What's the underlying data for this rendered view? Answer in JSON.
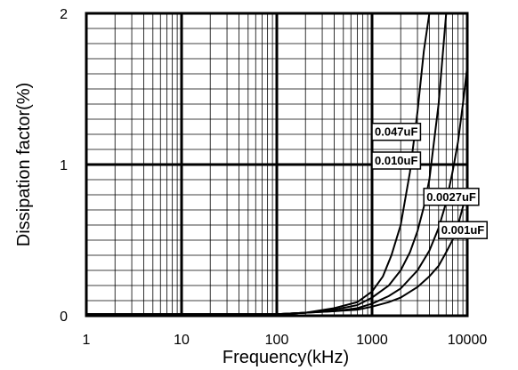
{
  "chart_data": {
    "type": "line",
    "xlabel": "Frequency(kHz)",
    "ylabel": "Dissipation factor(%)",
    "x_scale": "log",
    "xlim": [
      1,
      10000
    ],
    "ylim": [
      0,
      2
    ],
    "x_ticks": [
      1,
      10,
      100,
      1000,
      10000
    ],
    "x_tick_labels": [
      "1",
      "10",
      "100",
      "1000",
      "10000"
    ],
    "y_ticks": [
      0,
      1,
      2
    ],
    "y_tick_labels": [
      "0",
      "1",
      "2"
    ],
    "grid": true,
    "series": [
      {
        "name": "0.047uF",
        "label_at": [
          1000,
          1.19
        ],
        "x": [
          1,
          2,
          5,
          10,
          20,
          50,
          100,
          200,
          400,
          700,
          1000,
          1300,
          1600,
          2000,
          2500,
          3000,
          3500,
          4000
        ],
        "y": [
          0.01,
          0.01,
          0.01,
          0.01,
          0.01,
          0.01,
          0.01,
          0.02,
          0.05,
          0.09,
          0.16,
          0.26,
          0.4,
          0.6,
          0.95,
          1.35,
          1.75,
          2.0
        ]
      },
      {
        "name": "0.010uF",
        "label_at": [
          1000,
          1.0
        ],
        "x": [
          1,
          2,
          5,
          10,
          20,
          50,
          100,
          200,
          400,
          700,
          1000,
          1500,
          2000,
          2500,
          3000,
          3500,
          4000,
          5000,
          6000
        ],
        "y": [
          0.01,
          0.01,
          0.01,
          0.01,
          0.01,
          0.01,
          0.01,
          0.02,
          0.04,
          0.07,
          0.12,
          0.2,
          0.3,
          0.42,
          0.56,
          0.72,
          0.9,
          1.4,
          2.0
        ]
      },
      {
        "name": "0.0027uF",
        "label_at": [
          3500,
          0.76
        ],
        "x": [
          1,
          2,
          5,
          10,
          20,
          50,
          100,
          200,
          400,
          700,
          1000,
          1500,
          2000,
          3000,
          4000,
          5000,
          6000,
          7000,
          8000,
          9000,
          10000
        ],
        "y": [
          0.01,
          0.01,
          0.01,
          0.01,
          0.01,
          0.01,
          0.01,
          0.02,
          0.03,
          0.05,
          0.08,
          0.13,
          0.18,
          0.3,
          0.43,
          0.58,
          0.75,
          0.95,
          1.15,
          1.4,
          1.65
        ]
      },
      {
        "name": "0.001uF",
        "label_at": [
          5000,
          0.54
        ],
        "x": [
          1,
          2,
          5,
          10,
          20,
          50,
          100,
          200,
          400,
          700,
          1000,
          1500,
          2000,
          3000,
          4000,
          5000,
          6000,
          7000,
          8000,
          9000,
          10000
        ],
        "y": [
          0.01,
          0.01,
          0.01,
          0.01,
          0.01,
          0.01,
          0.01,
          0.02,
          0.03,
          0.04,
          0.06,
          0.09,
          0.12,
          0.19,
          0.26,
          0.33,
          0.42,
          0.5,
          0.6,
          0.72,
          0.84
        ]
      }
    ]
  }
}
